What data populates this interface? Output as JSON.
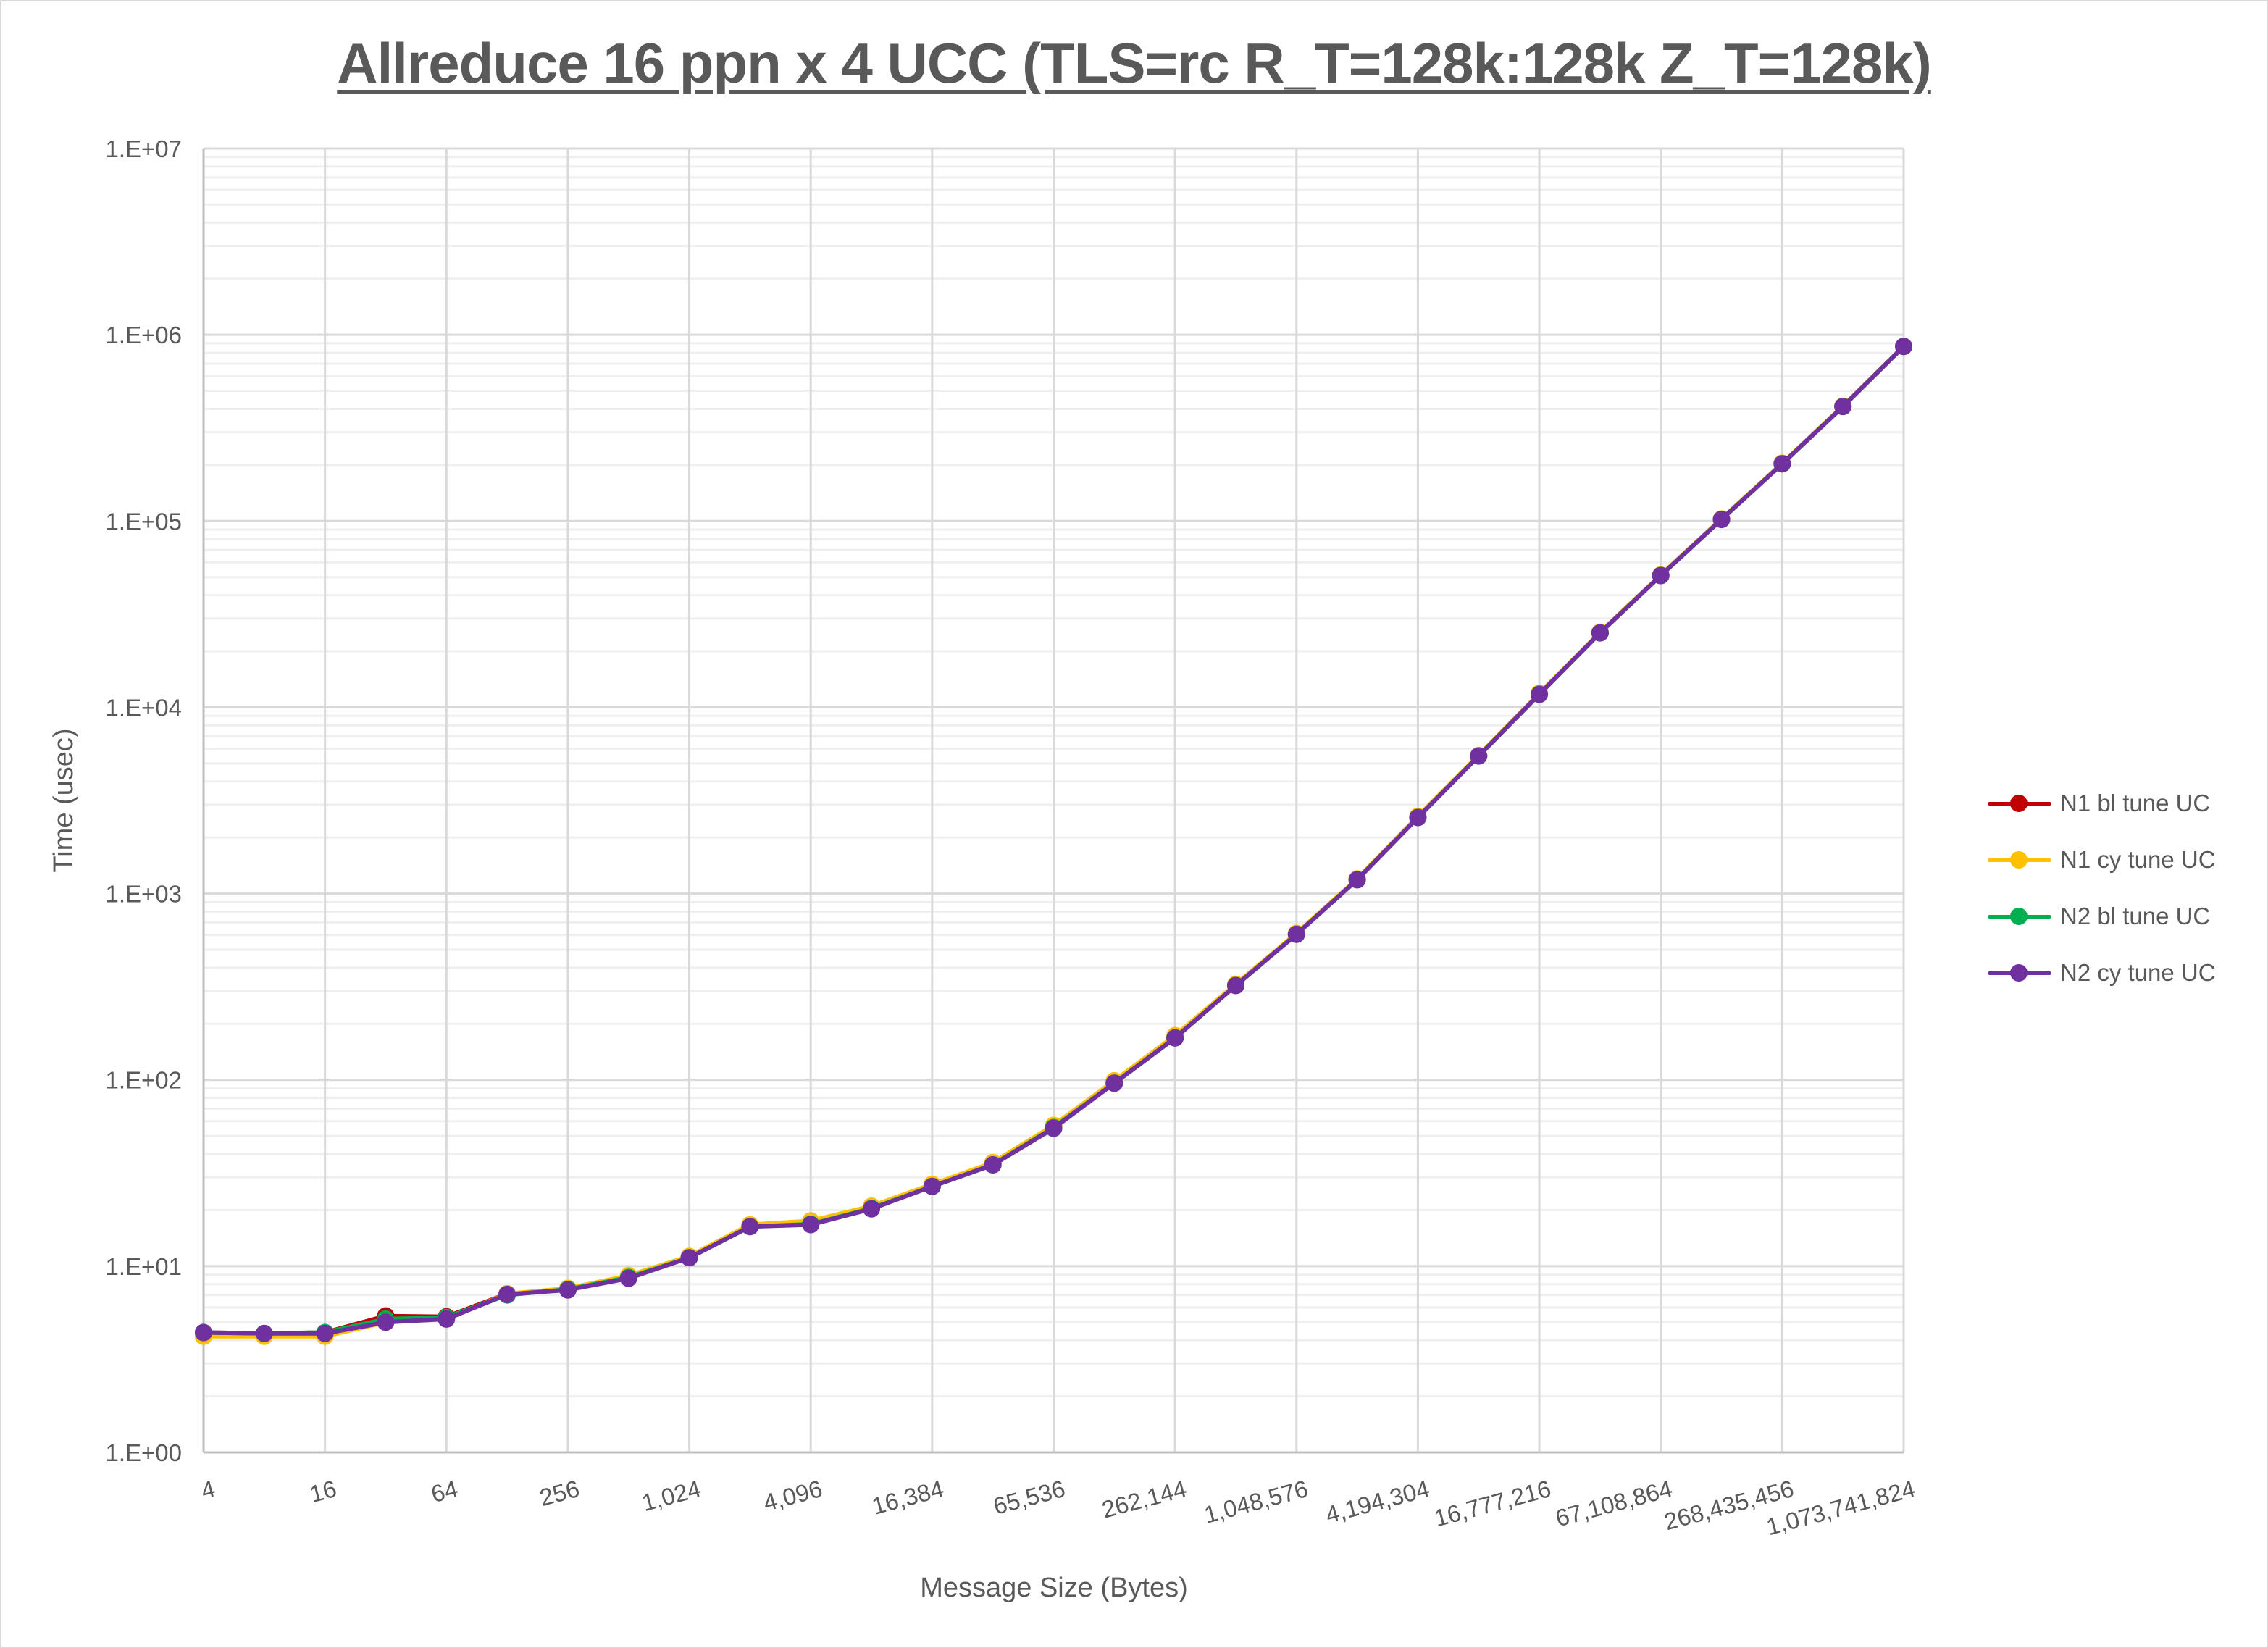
{
  "chart_data": {
    "type": "line",
    "title": "Allreduce 16 ppn x 4 UCC (TLS=rc R_T=128k:128k Z_T=128k)",
    "xlabel": "Message Size (Bytes)",
    "ylabel": "Time (usec)",
    "yscale": "log",
    "ylim": [
      1,
      10000000
    ],
    "xscale": "log2",
    "grid": true,
    "legend_position": "right",
    "y_tick_labels": [
      "1.E+00",
      "1.E+01",
      "1.E+02",
      "1.E+03",
      "1.E+04",
      "1.E+05",
      "1.E+06",
      "1.E+07"
    ],
    "x_tick_labels": [
      "4",
      "16",
      "64",
      "256",
      "1,024",
      "4,096",
      "16,384",
      "65,536",
      "262,144",
      "1,048,576",
      "4,194,304",
      "16,777,216",
      "67,108,864",
      "268,435,456",
      "1,073,741,824"
    ],
    "x": [
      4,
      8,
      16,
      32,
      64,
      128,
      256,
      512,
      1024,
      2048,
      4096,
      8192,
      16384,
      32768,
      65536,
      131072,
      262144,
      524288,
      1048576,
      2097152,
      4194304,
      8388608,
      16777216,
      33554432,
      67108864,
      134217728,
      268435456,
      536870912,
      1073741824
    ],
    "series": [
      {
        "name": "N1 bl tune UC",
        "color": "#C00000",
        "values": [
          4.4,
          4.35,
          4.4,
          5.4,
          5.35,
          7.1,
          7.5,
          8.7,
          11.2,
          16.5,
          17.0,
          20.6,
          27.0,
          35.5,
          56,
          97,
          170,
          322,
          606,
          1190,
          2570,
          5490,
          11800,
          25200,
          51200,
          102500,
          204000,
          413000,
          866000
        ]
      },
      {
        "name": "N1 cy tune UC",
        "color": "#FFC000",
        "values": [
          4.2,
          4.2,
          4.2,
          5.0,
          5.2,
          7.1,
          7.6,
          8.9,
          11.3,
          16.7,
          17.5,
          21.0,
          27.5,
          36.0,
          57,
          99,
          173,
          326,
          612,
          1200,
          2600,
          5520,
          11900,
          25300,
          51300,
          102600,
          204500,
          414000,
          867000
        ]
      },
      {
        "name": "N2 bl tune UC",
        "color": "#00B050",
        "values": [
          4.4,
          4.35,
          4.4,
          5.2,
          5.3,
          7.0,
          7.5,
          8.7,
          11.1,
          16.3,
          16.8,
          20.4,
          26.8,
          35.0,
          55.5,
          96,
          168,
          321,
          605,
          1187,
          2563,
          5480,
          11750,
          25100,
          51000,
          102000,
          203000,
          412000,
          866000
        ]
      },
      {
        "name": "N2 cy tune UC",
        "color": "#7030A0",
        "values": [
          4.4,
          4.35,
          4.35,
          5.0,
          5.2,
          7.05,
          7.45,
          8.6,
          11.1,
          16.3,
          16.7,
          20.3,
          26.8,
          35.0,
          55,
          96,
          168,
          321,
          605,
          1187,
          2563,
          5480,
          11750,
          25100,
          51000,
          102000,
          203000,
          412000,
          866000
        ]
      }
    ]
  }
}
